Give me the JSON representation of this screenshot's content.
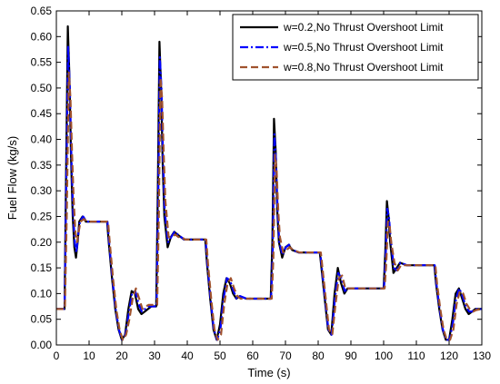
{
  "chart_data": {
    "type": "line",
    "title": "",
    "xlabel": "Time (s)",
    "ylabel": "Fuel Flow (kg/s)",
    "xlim": [
      0,
      130
    ],
    "ylim": [
      0,
      0.65
    ],
    "xticks": [
      0,
      10,
      20,
      30,
      40,
      50,
      60,
      70,
      80,
      90,
      100,
      110,
      120,
      130
    ],
    "yticks": [
      0.0,
      0.05,
      0.1,
      0.15,
      0.2,
      0.25,
      0.3,
      0.35,
      0.4,
      0.45,
      0.5,
      0.55,
      0.6,
      0.65
    ],
    "grid": false,
    "legend_position": "top-right",
    "series": [
      {
        "name": "w=0.2,No Thrust Overshoot Limit",
        "color": "#000000",
        "style": "solid",
        "points": [
          [
            0,
            0.07
          ],
          [
            2.5,
            0.07
          ],
          [
            3.0,
            0.35
          ],
          [
            3.5,
            0.62
          ],
          [
            4.0,
            0.52
          ],
          [
            4.5,
            0.36
          ],
          [
            5.0,
            0.25
          ],
          [
            5.5,
            0.19
          ],
          [
            6.0,
            0.17
          ],
          [
            6.5,
            0.2
          ],
          [
            7.0,
            0.24
          ],
          [
            8.0,
            0.25
          ],
          [
            9.0,
            0.24
          ],
          [
            10,
            0.24
          ],
          [
            15.5,
            0.24
          ],
          [
            16,
            0.2
          ],
          [
            17,
            0.13
          ],
          [
            18,
            0.07
          ],
          [
            19,
            0.03
          ],
          [
            20,
            0.01
          ],
          [
            21,
            0.02
          ],
          [
            22,
            0.07
          ],
          [
            23,
            0.105
          ],
          [
            24,
            0.1
          ],
          [
            25,
            0.07
          ],
          [
            26,
            0.06
          ],
          [
            27,
            0.065
          ],
          [
            28,
            0.07
          ],
          [
            29,
            0.075
          ],
          [
            30.5,
            0.075
          ],
          [
            31,
            0.3
          ],
          [
            31.5,
            0.59
          ],
          [
            32,
            0.5
          ],
          [
            32.5,
            0.35
          ],
          [
            33,
            0.25
          ],
          [
            34,
            0.19
          ],
          [
            35,
            0.21
          ],
          [
            36,
            0.22
          ],
          [
            37,
            0.215
          ],
          [
            38,
            0.21
          ],
          [
            39,
            0.205
          ],
          [
            45.5,
            0.205
          ],
          [
            46,
            0.16
          ],
          [
            47,
            0.09
          ],
          [
            48,
            0.03
          ],
          [
            49,
            0.01
          ],
          [
            50,
            0.04
          ],
          [
            51,
            0.1
          ],
          [
            52,
            0.13
          ],
          [
            53,
            0.12
          ],
          [
            54,
            0.1
          ],
          [
            55,
            0.09
          ],
          [
            56,
            0.095
          ],
          [
            58,
            0.09
          ],
          [
            65.5,
            0.09
          ],
          [
            66,
            0.2
          ],
          [
            66.5,
            0.44
          ],
          [
            67,
            0.38
          ],
          [
            67.5,
            0.26
          ],
          [
            68,
            0.2
          ],
          [
            69,
            0.17
          ],
          [
            70,
            0.19
          ],
          [
            71,
            0.195
          ],
          [
            72,
            0.185
          ],
          [
            74,
            0.18
          ],
          [
            80.5,
            0.18
          ],
          [
            81,
            0.15
          ],
          [
            82,
            0.09
          ],
          [
            83,
            0.03
          ],
          [
            84,
            0.02
          ],
          [
            85,
            0.1
          ],
          [
            86,
            0.15
          ],
          [
            87,
            0.12
          ],
          [
            88,
            0.1
          ],
          [
            89,
            0.11
          ],
          [
            91,
            0.11
          ],
          [
            100,
            0.11
          ],
          [
            100.5,
            0.18
          ],
          [
            101,
            0.28
          ],
          [
            101.5,
            0.25
          ],
          [
            102,
            0.2
          ],
          [
            103,
            0.14
          ],
          [
            104,
            0.15
          ],
          [
            105,
            0.16
          ],
          [
            107,
            0.155
          ],
          [
            115.5,
            0.155
          ],
          [
            116,
            0.12
          ],
          [
            117,
            0.07
          ],
          [
            118,
            0.03
          ],
          [
            119,
            0.01
          ],
          [
            120,
            0.01
          ],
          [
            121,
            0.05
          ],
          [
            122,
            0.1
          ],
          [
            123,
            0.11
          ],
          [
            124,
            0.09
          ],
          [
            125,
            0.07
          ],
          [
            126,
            0.06
          ],
          [
            127,
            0.065
          ],
          [
            128,
            0.07
          ],
          [
            130,
            0.07
          ]
        ]
      },
      {
        "name": "w=0.5,No Thrust Overshoot Limit",
        "color": "#0000ff",
        "style": "dash-dot",
        "points": [
          [
            0,
            0.07
          ],
          [
            2.5,
            0.07
          ],
          [
            3.0,
            0.3
          ],
          [
            3.6,
            0.58
          ],
          [
            4.1,
            0.5
          ],
          [
            4.6,
            0.36
          ],
          [
            5.1,
            0.26
          ],
          [
            5.6,
            0.2
          ],
          [
            6.1,
            0.18
          ],
          [
            6.6,
            0.21
          ],
          [
            7.2,
            0.24
          ],
          [
            8.2,
            0.25
          ],
          [
            9.2,
            0.24
          ],
          [
            10,
            0.24
          ],
          [
            15.6,
            0.24
          ],
          [
            16.1,
            0.2
          ],
          [
            17.1,
            0.13
          ],
          [
            18.1,
            0.07
          ],
          [
            19.1,
            0.03
          ],
          [
            20.1,
            0.01
          ],
          [
            21.1,
            0.02
          ],
          [
            22.1,
            0.06
          ],
          [
            23.1,
            0.1
          ],
          [
            24.1,
            0.105
          ],
          [
            25.1,
            0.08
          ],
          [
            26.1,
            0.065
          ],
          [
            27.1,
            0.07
          ],
          [
            28.1,
            0.075
          ],
          [
            29,
            0.075
          ],
          [
            30.6,
            0.075
          ],
          [
            31.1,
            0.28
          ],
          [
            31.6,
            0.56
          ],
          [
            32.1,
            0.5
          ],
          [
            32.6,
            0.36
          ],
          [
            33.1,
            0.26
          ],
          [
            34.1,
            0.2
          ],
          [
            35.1,
            0.21
          ],
          [
            36.1,
            0.22
          ],
          [
            37.1,
            0.215
          ],
          [
            38.1,
            0.21
          ],
          [
            39.1,
            0.205
          ],
          [
            45.6,
            0.205
          ],
          [
            46.1,
            0.16
          ],
          [
            47.1,
            0.09
          ],
          [
            48.1,
            0.03
          ],
          [
            49.1,
            0.01
          ],
          [
            50.1,
            0.03
          ],
          [
            51.1,
            0.09
          ],
          [
            52.1,
            0.13
          ],
          [
            53.1,
            0.125
          ],
          [
            54.1,
            0.105
          ],
          [
            55.1,
            0.09
          ],
          [
            56.1,
            0.095
          ],
          [
            58.1,
            0.09
          ],
          [
            65.6,
            0.09
          ],
          [
            66.1,
            0.18
          ],
          [
            66.6,
            0.41
          ],
          [
            67.1,
            0.36
          ],
          [
            67.6,
            0.26
          ],
          [
            68.1,
            0.2
          ],
          [
            69.1,
            0.175
          ],
          [
            70.1,
            0.19
          ],
          [
            71.1,
            0.195
          ],
          [
            72.1,
            0.185
          ],
          [
            74.1,
            0.18
          ],
          [
            80.6,
            0.18
          ],
          [
            81.1,
            0.15
          ],
          [
            82.1,
            0.09
          ],
          [
            83.1,
            0.03
          ],
          [
            84.1,
            0.02
          ],
          [
            85.1,
            0.09
          ],
          [
            86.1,
            0.14
          ],
          [
            87.1,
            0.13
          ],
          [
            88.1,
            0.105
          ],
          [
            89.1,
            0.11
          ],
          [
            91.1,
            0.11
          ],
          [
            100.1,
            0.11
          ],
          [
            100.6,
            0.17
          ],
          [
            101.1,
            0.265
          ],
          [
            101.6,
            0.25
          ],
          [
            102.1,
            0.21
          ],
          [
            103.1,
            0.15
          ],
          [
            104.1,
            0.145
          ],
          [
            105.1,
            0.16
          ],
          [
            107.1,
            0.155
          ],
          [
            115.6,
            0.155
          ],
          [
            116.1,
            0.12
          ],
          [
            117.1,
            0.07
          ],
          [
            118.1,
            0.03
          ],
          [
            119.1,
            0.01
          ],
          [
            120.1,
            0.01
          ],
          [
            121.1,
            0.04
          ],
          [
            122.1,
            0.09
          ],
          [
            123.1,
            0.11
          ],
          [
            124.1,
            0.095
          ],
          [
            125.1,
            0.075
          ],
          [
            126.1,
            0.065
          ],
          [
            127.1,
            0.065
          ],
          [
            128.1,
            0.07
          ],
          [
            130,
            0.07
          ]
        ]
      },
      {
        "name": "w=0.8,No Thrust Overshoot Limit",
        "color": "#a0522d",
        "style": "dashed",
        "points": [
          [
            0,
            0.07
          ],
          [
            2.6,
            0.07
          ],
          [
            3.2,
            0.26
          ],
          [
            3.8,
            0.53
          ],
          [
            4.3,
            0.48
          ],
          [
            4.8,
            0.37
          ],
          [
            5.3,
            0.28
          ],
          [
            5.8,
            0.22
          ],
          [
            6.3,
            0.2
          ],
          [
            6.8,
            0.22
          ],
          [
            7.4,
            0.24
          ],
          [
            8.4,
            0.245
          ],
          [
            9.4,
            0.24
          ],
          [
            10,
            0.24
          ],
          [
            15.8,
            0.24
          ],
          [
            16.3,
            0.2
          ],
          [
            17.3,
            0.13
          ],
          [
            18.3,
            0.07
          ],
          [
            19.3,
            0.03
          ],
          [
            20.3,
            0.01
          ],
          [
            21.3,
            0.02
          ],
          [
            22.3,
            0.05
          ],
          [
            23.3,
            0.09
          ],
          [
            24.3,
            0.11
          ],
          [
            25.3,
            0.09
          ],
          [
            26.3,
            0.07
          ],
          [
            27.3,
            0.075
          ],
          [
            28.3,
            0.078
          ],
          [
            29.3,
            0.078
          ],
          [
            30.8,
            0.078
          ],
          [
            31.3,
            0.25
          ],
          [
            31.8,
            0.52
          ],
          [
            32.3,
            0.48
          ],
          [
            32.8,
            0.37
          ],
          [
            33.3,
            0.28
          ],
          [
            34.3,
            0.21
          ],
          [
            35.3,
            0.21
          ],
          [
            36.3,
            0.215
          ],
          [
            37.3,
            0.21
          ],
          [
            38.3,
            0.21
          ],
          [
            39.3,
            0.205
          ],
          [
            45.8,
            0.205
          ],
          [
            46.3,
            0.16
          ],
          [
            47.3,
            0.09
          ],
          [
            48.3,
            0.03
          ],
          [
            49.3,
            0.01
          ],
          [
            50.3,
            0.02
          ],
          [
            51.3,
            0.08
          ],
          [
            52.3,
            0.12
          ],
          [
            53.3,
            0.13
          ],
          [
            54.3,
            0.11
          ],
          [
            55.3,
            0.095
          ],
          [
            56.3,
            0.09
          ],
          [
            58.3,
            0.09
          ],
          [
            65.8,
            0.09
          ],
          [
            66.3,
            0.17
          ],
          [
            66.8,
            0.37
          ],
          [
            67.3,
            0.34
          ],
          [
            67.8,
            0.26
          ],
          [
            68.3,
            0.21
          ],
          [
            69.3,
            0.18
          ],
          [
            70.3,
            0.185
          ],
          [
            71.3,
            0.19
          ],
          [
            72.3,
            0.185
          ],
          [
            74.3,
            0.18
          ],
          [
            80.8,
            0.18
          ],
          [
            81.3,
            0.15
          ],
          [
            82.3,
            0.09
          ],
          [
            83.3,
            0.03
          ],
          [
            84.3,
            0.02
          ],
          [
            85.3,
            0.08
          ],
          [
            86.3,
            0.13
          ],
          [
            87.3,
            0.135
          ],
          [
            88.3,
            0.11
          ],
          [
            89.3,
            0.11
          ],
          [
            91.3,
            0.11
          ],
          [
            100.3,
            0.11
          ],
          [
            100.8,
            0.16
          ],
          [
            101.3,
            0.24
          ],
          [
            101.8,
            0.235
          ],
          [
            102.3,
            0.2
          ],
          [
            103.3,
            0.16
          ],
          [
            104.3,
            0.145
          ],
          [
            105.3,
            0.155
          ],
          [
            107.3,
            0.155
          ],
          [
            115.8,
            0.155
          ],
          [
            116.3,
            0.12
          ],
          [
            117.3,
            0.07
          ],
          [
            118.3,
            0.03
          ],
          [
            119.3,
            0.01
          ],
          [
            120.3,
            0.01
          ],
          [
            121.3,
            0.03
          ],
          [
            122.3,
            0.08
          ],
          [
            123.3,
            0.105
          ],
          [
            124.3,
            0.1
          ],
          [
            125.3,
            0.08
          ],
          [
            126.3,
            0.07
          ],
          [
            127.3,
            0.065
          ],
          [
            128.3,
            0.068
          ],
          [
            130,
            0.07
          ]
        ]
      }
    ]
  }
}
